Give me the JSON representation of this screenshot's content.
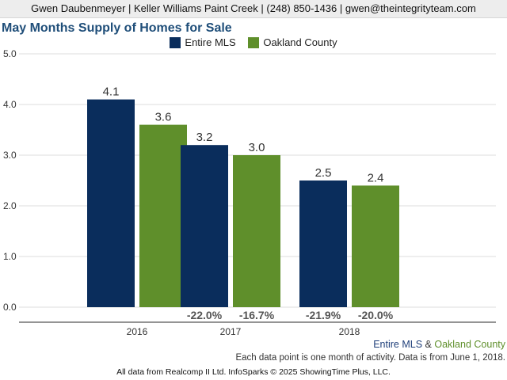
{
  "header": {
    "text": "Gwen Daubenmeyer | Keller Williams Paint Creek | (248) 850-1436 | gwen@theintegrityteam.com"
  },
  "colors": {
    "entire_mls": "#0a2d5c",
    "oakland_county": "#5f8f2b",
    "title": "#1f4e79"
  },
  "chart_data": {
    "type": "bar",
    "title": "May Months Supply of Homes for Sale",
    "categories": [
      "2016",
      "2017",
      "2018"
    ],
    "ylim": [
      0,
      5
    ],
    "yticks": [
      "0.0",
      "1.0",
      "2.0",
      "3.0",
      "4.0",
      "5.0"
    ],
    "grid": true,
    "legend_position": "top-center",
    "series": [
      {
        "name": "Entire MLS",
        "values": [
          4.1,
          3.2,
          2.5
        ],
        "labels": [
          "4.1",
          "3.2",
          "2.5"
        ],
        "changes": [
          "",
          "-22.0%",
          "-21.9%"
        ]
      },
      {
        "name": "Oakland County",
        "values": [
          3.6,
          3.0,
          2.4
        ],
        "labels": [
          "3.6",
          "3.0",
          "2.4"
        ],
        "changes": [
          "",
          "-16.7%",
          "-20.0%"
        ]
      }
    ]
  },
  "footer": {
    "legend_left": "Entire MLS",
    "legend_amp": " & ",
    "legend_right": "Oakland County",
    "note": "Each data point is one month of activity. Data is from June 1, 2018.",
    "source": "All data from Realcomp II Ltd. InfoSparks © 2025 ShowingTime Plus, LLC."
  }
}
